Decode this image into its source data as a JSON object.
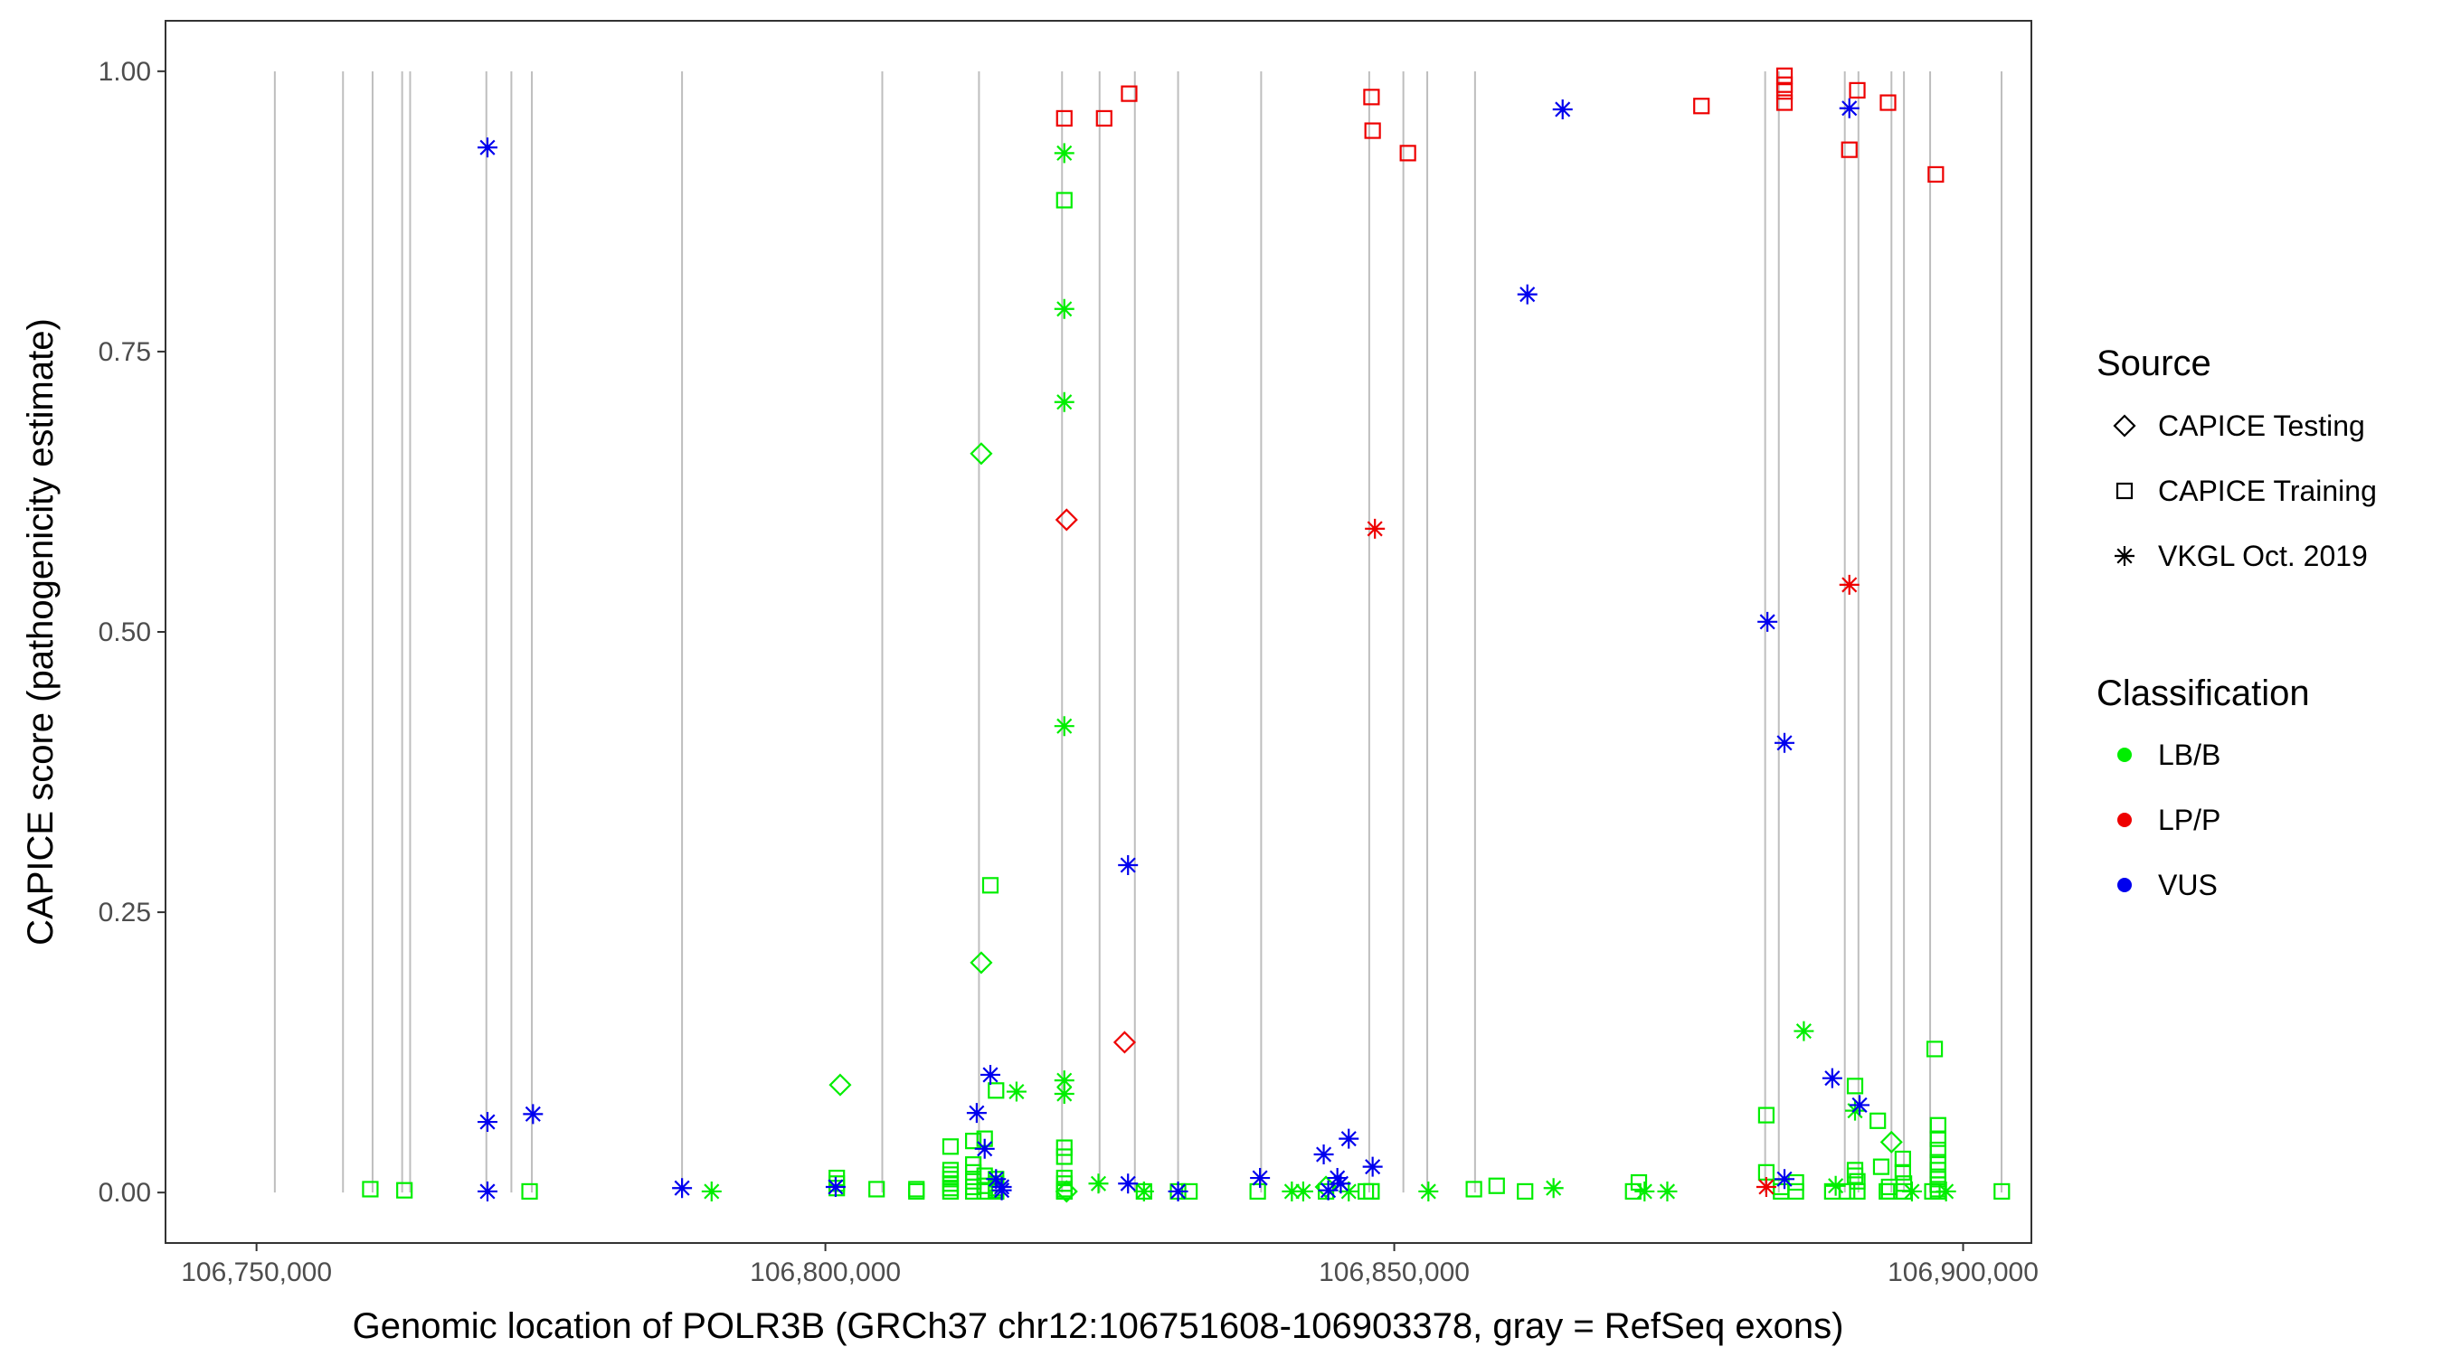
{
  "chart_data": {
    "type": "scatter",
    "xlabel": "Genomic location of POLR3B (GRCh37 chr12:106751608-106903378, gray = RefSeq exons)",
    "ylabel": "CAPICE score (pathogenicity estimate)",
    "xlim": [
      106742000,
      106906000
    ],
    "ylim": [
      -0.045,
      1.045
    ],
    "x_ticks": [
      106750000,
      106800000,
      106850000,
      106900000
    ],
    "x_tick_labels": [
      "106,750,000",
      "106,800,000",
      "106,850,000",
      "106,900,000"
    ],
    "y_ticks": [
      0,
      0.25,
      0.5,
      0.75,
      1.0
    ],
    "y_tick_labels": [
      "0.00",
      "0.25",
      "0.50",
      "0.75",
      "1.00"
    ],
    "grid": false,
    "exon_color": "#bebebe",
    "exon_positions": [
      106751608,
      106757600,
      106760200,
      106762800,
      106763500,
      106770200,
      106772400,
      106774200,
      106787400,
      106805000,
      106813500,
      106820800,
      106824100,
      106827200,
      106831000,
      106838300,
      106847800,
      106850800,
      106852900,
      106857100,
      106882600,
      106883800,
      106889600,
      106890800,
      106893700,
      106894800,
      106897100,
      106903378
    ],
    "legend": {
      "source_title": "Source",
      "source_items": [
        {
          "label": "CAPICE Testing",
          "shape": "diamond"
        },
        {
          "label": "CAPICE Training",
          "shape": "square"
        },
        {
          "label": "VKGL Oct. 2019",
          "shape": "asterisk"
        }
      ],
      "class_title": "Classification",
      "class_items": [
        {
          "label": "LB/B",
          "color": "#00ee00"
        },
        {
          "label": "LP/P",
          "color": "#ee0000"
        },
        {
          "label": "VUS",
          "color": "#0000ee"
        }
      ],
      "position": "right"
    },
    "series": [
      {
        "source": "CAPICE Training",
        "classification": "LB/B",
        "shape": "square",
        "color": "#00ee00",
        "x": [
          106760000,
          106763000,
          106774000,
          106801000,
          106801000,
          106801000,
          106804500,
          106808000,
          106808000,
          106811000,
          106811000,
          106811000,
          106811000,
          106811000,
          106811000,
          106811000,
          106811000,
          106813000,
          106813000,
          106813000,
          106813000,
          106813000,
          106813000,
          106814000,
          106814000,
          106814000,
          106814000,
          106814500,
          106815000,
          106815000,
          106815000,
          106815000,
          106815000,
          106815000,
          106815000,
          106821000,
          106821000,
          106821000,
          106821000,
          106821000,
          106821000,
          106821000,
          106821000,
          106828000,
          106831000,
          106832000,
          106838000,
          106844000,
          106847500,
          106848000,
          106848000,
          106857000,
          106859000,
          106861500,
          106871000,
          106871500,
          106882700,
          106882700,
          106884000,
          106884000,
          106885300,
          106885300,
          106888500,
          106889800,
          106890500,
          106890500,
          106890500,
          106890700,
          106890700,
          106892500,
          106892800,
          106893300,
          106893500,
          106893500,
          106894700,
          106894700,
          106894800,
          106894800,
          106897300,
          106897500,
          106897800,
          106897800,
          106897800,
          106897800,
          106897800,
          106897800,
          106897800,
          106897800,
          106897800,
          106903400
        ],
        "y": [
          0.003,
          0.002,
          0.001,
          0.004,
          0.008,
          0.013,
          0.003,
          0.001,
          0.003,
          0.001,
          0.004,
          0.008,
          0.012,
          0.016,
          0.02,
          0.041,
          0.001,
          0.001,
          0.005,
          0.01,
          0.018,
          0.025,
          0.046,
          0.001,
          0.006,
          0.015,
          0.048,
          0.274,
          0.091,
          0.012,
          0.008,
          0.004,
          0.002,
          0.001,
          0.001,
          0.885,
          0.04,
          0.032,
          0.013,
          0.008,
          0.003,
          0.001,
          0.001,
          0.001,
          0.001,
          0.001,
          0.001,
          0.001,
          0.001,
          0.001,
          0.001,
          0.003,
          0.006,
          0.001,
          0.001,
          0.009,
          0.069,
          0.018,
          0.001,
          0.005,
          0.009,
          0.001,
          0.001,
          0.001,
          0.095,
          0.02,
          0.015,
          0.01,
          0.001,
          0.064,
          0.023,
          0.001,
          0.001,
          0.005,
          0.03,
          0.018,
          0.008,
          0.001,
          0.001,
          0.128,
          0.06,
          0.048,
          0.038,
          0.027,
          0.02,
          0.012,
          0.007,
          0.003,
          0.001,
          0.001
        ]
      },
      {
        "source": "CAPICE Training",
        "classification": "LP/P",
        "shape": "square",
        "color": "#ee0000",
        "x": [
          106821000,
          106824500,
          106826700,
          106848000,
          106848100,
          106851200,
          106877000,
          106884300,
          106884300,
          106884300,
          106884300,
          106890000,
          106890700,
          106893400,
          106897600
        ],
        "y": [
          0.958,
          0.958,
          0.98,
          0.977,
          0.947,
          0.927,
          0.969,
          0.996,
          0.988,
          0.982,
          0.972,
          0.93,
          0.983,
          0.972,
          0.908
        ]
      },
      {
        "source": "CAPICE Testing",
        "classification": "LB/B",
        "shape": "diamond",
        "color": "#00ee00",
        "x": [
          106813700,
          106813700,
          106801300,
          106821200,
          106893700,
          106844000
        ],
        "y": [
          0.659,
          0.205,
          0.096,
          0.001,
          0.045,
          0.005
        ]
      },
      {
        "source": "CAPICE Testing",
        "classification": "LP/P",
        "shape": "diamond",
        "color": "#ee0000",
        "x": [
          106821200,
          106826300
        ],
        "y": [
          0.6,
          0.134
        ]
      },
      {
        "source": "VKGL Oct. 2019",
        "classification": "LB/B",
        "shape": "asterisk",
        "color": "#00ee00",
        "x": [
          106821000,
          106821000,
          106821000,
          106821000,
          106821000,
          106821000,
          106816800,
          106824000,
          106828000,
          106790000,
          106841000,
          106842000,
          106846000,
          106853000,
          106864000,
          106872000,
          106874000,
          106886000,
          106888800,
          106890500,
          106895500,
          106898500
        ],
        "y": [
          0.927,
          0.788,
          0.705,
          0.416,
          0.1,
          0.088,
          0.09,
          0.008,
          0.001,
          0.001,
          0.001,
          0.001,
          0.001,
          0.001,
          0.004,
          0.001,
          0.001,
          0.144,
          0.006,
          0.073,
          0.001,
          0.001
        ]
      },
      {
        "source": "VKGL Oct. 2019",
        "classification": "LP/P",
        "shape": "asterisk",
        "color": "#ee0000",
        "x": [
          106848300,
          106890000,
          106882700
        ],
        "y": [
          0.592,
          0.542,
          0.005
        ]
      },
      {
        "source": "VKGL Oct. 2019",
        "classification": "VUS",
        "shape": "asterisk",
        "color": "#0000ee",
        "x": [
          106770300,
          106770300,
          106770300,
          106774300,
          106787400,
          106800900,
          106813300,
          106814000,
          106814500,
          106815000,
          106815500,
          106815500,
          106826600,
          106826600,
          106831000,
          106838200,
          106843800,
          106845000,
          106845300,
          106846000,
          106848100,
          106844200,
          106861700,
          106864800,
          106882800,
          106884300,
          106884300,
          106888500,
          106890000,
          106890900
        ],
        "y": [
          0.932,
          0.063,
          0.001,
          0.07,
          0.004,
          0.005,
          0.071,
          0.039,
          0.105,
          0.012,
          0.005,
          0.002,
          0.292,
          0.008,
          0.001,
          0.013,
          0.034,
          0.013,
          0.008,
          0.048,
          0.023,
          0.002,
          0.801,
          0.966,
          0.509,
          0.401,
          0.012,
          0.102,
          0.967,
          0.078
        ]
      }
    ]
  }
}
